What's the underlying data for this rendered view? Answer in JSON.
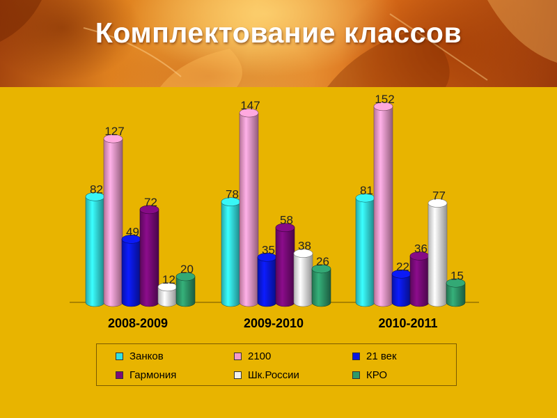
{
  "title": "Комплектование классов",
  "chart_data": {
    "type": "bar",
    "categories": [
      "2008-2009",
      "2009-2010",
      "2010-2011"
    ],
    "ylim": [
      0,
      160
    ],
    "legend_position": "bottom",
    "grid": false,
    "series": [
      {
        "name": "Занков",
        "values": [
          82,
          78,
          81
        ],
        "color": "#33e0e0"
      },
      {
        "name": "2100",
        "values": [
          127,
          147,
          152
        ],
        "color": "#f59acb"
      },
      {
        "name": "21 век",
        "values": [
          49,
          35,
          22
        ],
        "color": "#0a18e0"
      },
      {
        "name": "Гармония",
        "values": [
          72,
          58,
          36
        ],
        "color": "#7a0a7a"
      },
      {
        "name": "Шк.России",
        "values": [
          12,
          38,
          77
        ],
        "color": "#f1f1f1"
      },
      {
        "name": "КРО",
        "values": [
          20,
          26,
          15
        ],
        "color": "#2e9a6a"
      }
    ],
    "data_labels": [
      [
        "82",
        "127",
        "49",
        "72",
        "12",
        "20"
      ],
      [
        "78",
        "147",
        "35",
        "58",
        "38",
        "26"
      ],
      [
        "81",
        "152",
        "22",
        "36",
        "77",
        "15"
      ]
    ]
  },
  "legend": {
    "items": [
      {
        "label": "Занков",
        "color": "#33e0e0"
      },
      {
        "label": "2100",
        "color": "#f59acb"
      },
      {
        "label": "21 век",
        "color": "#0a18e0"
      },
      {
        "label": "Гармония",
        "color": "#7a0a7a"
      },
      {
        "label": "Шк.России",
        "color": "#f1f1f1"
      },
      {
        "label": "КРО",
        "color": "#2e9a6a"
      }
    ]
  }
}
